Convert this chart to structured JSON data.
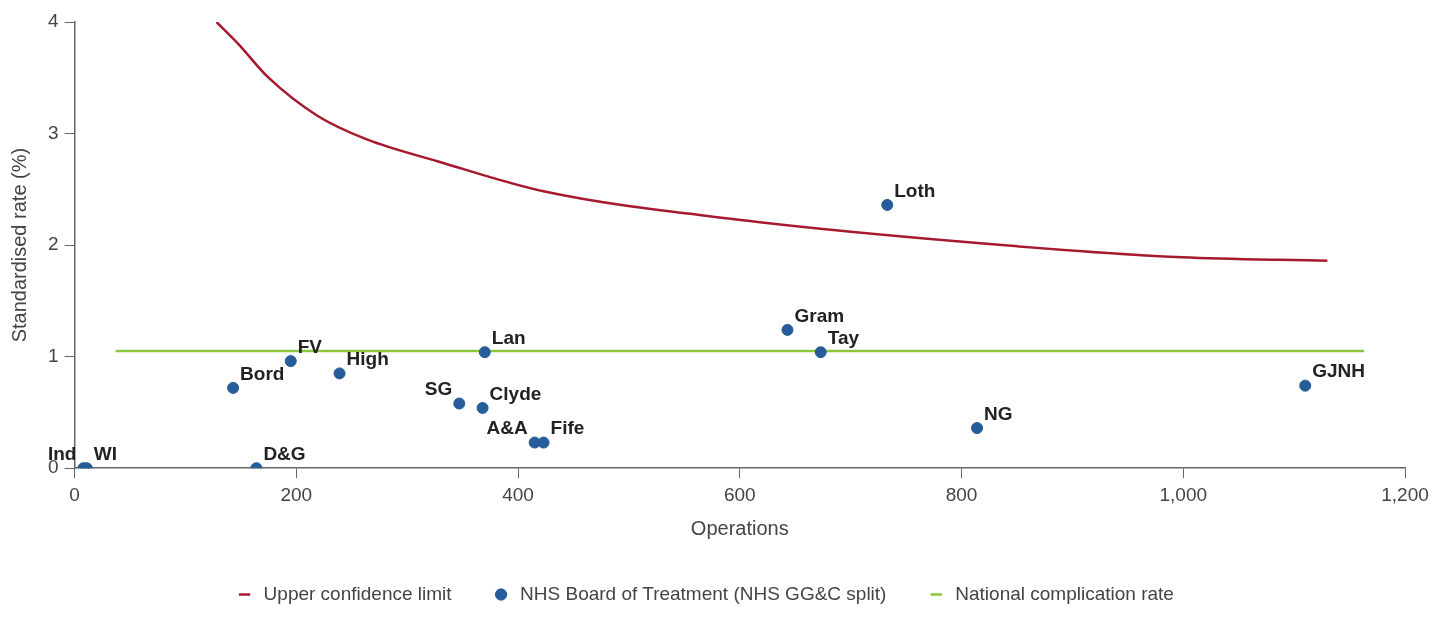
{
  "chart_data": {
    "type": "scatter",
    "xlabel": "Operations",
    "ylabel": "Standardised rate (%)",
    "xlim": [
      0,
      1200
    ],
    "xticks": [
      0,
      200,
      400,
      600,
      800,
      {
        "value": 1000,
        "label": "1,000"
      },
      {
        "value": 1200,
        "label": "1,200"
      }
    ],
    "ylim": [
      0,
      4
    ],
    "yticks": [
      0,
      1,
      2,
      3,
      4
    ],
    "grid": false,
    "legend": "bottom",
    "series": [
      {
        "name": "Upper confidence limit",
        "type": "line",
        "marker": "none",
        "color": "#a6192e",
        "x": [
          128,
          148,
          174,
          219,
          263,
          328,
          424,
          597,
          801,
          999,
          1130
        ],
        "values": [
          4.0,
          3.8,
          3.51,
          3.16,
          2.95,
          2.75,
          2.48,
          2.23,
          2.03,
          1.89,
          1.86
        ]
      },
      {
        "name": "NHS Board of Treatment (NHS GG&C split)",
        "type": "scatter",
        "marker": "circle",
        "color": "#255c99",
        "x": [
          8,
          11,
          164,
          143,
          195,
          239,
          347,
          368,
          370,
          415,
          423,
          643,
          673,
          733,
          814,
          1110
        ],
        "values": [
          0,
          0,
          0,
          0.72,
          0.96,
          0.85,
          0.58,
          0.54,
          1.04,
          0.23,
          0.23,
          1.24,
          1.04,
          2.36,
          0.36,
          0.74
        ],
        "value_labels": [
          "Ind",
          "WI",
          "D&G",
          "Bord",
          "FV",
          "High",
          "SG",
          "Clyde",
          "Lan",
          "A&A",
          "Fife",
          "Gram",
          "Tay",
          "Loth",
          "NG",
          "GJNH"
        ]
      },
      {
        "name": "National complication rate",
        "type": "line",
        "marker": "none",
        "color": "#8cc63f",
        "x": [
          37,
          1163
        ],
        "values": [
          1.05,
          1.05
        ]
      }
    ]
  }
}
